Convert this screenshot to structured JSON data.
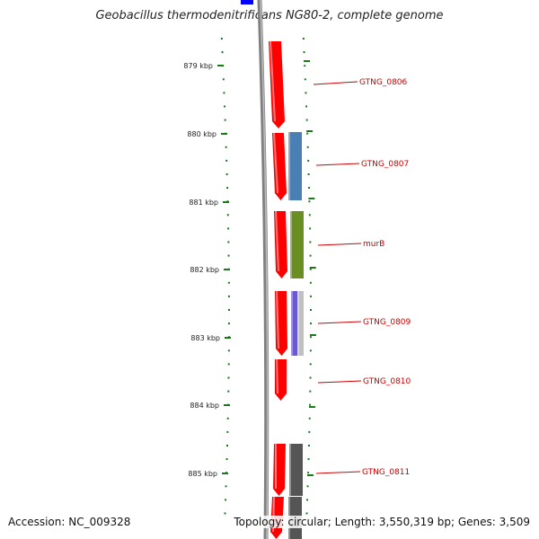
{
  "title": "Geobacillus thermodenitrificans NG80-2, complete genome",
  "footer": {
    "accession": "Accession: NC_009328",
    "summary": "Topology: circular; Length: 3,550,319 bp; Genes: 3,509"
  },
  "colors": {
    "cds": "#ff0000",
    "blast_blue": "#4a7fb5",
    "blast_green": "#6b8e23",
    "blast_purple": "#6a5acd",
    "blast_light": "#c0c0c0",
    "blast_dark": "#555555",
    "backbone": "#808080",
    "ticks": "#1a7a1a",
    "label": "#cc0000",
    "feature_top": "#0000ff"
  },
  "ticks": [
    {
      "label": "879 kbp"
    },
    {
      "label": "880 kbp"
    },
    {
      "label": "881 kbp"
    },
    {
      "label": "882 kbp"
    },
    {
      "label": "883 kbp"
    },
    {
      "label": "884 kbp"
    },
    {
      "label": "885 kbp"
    }
  ],
  "genes": [
    {
      "name": "GTNG_0806"
    },
    {
      "name": "GTNG_0807"
    },
    {
      "name": "murB"
    },
    {
      "name": "GTNG_0809"
    },
    {
      "name": "GTNG_0810"
    },
    {
      "name": "GTNG_0811"
    }
  ]
}
